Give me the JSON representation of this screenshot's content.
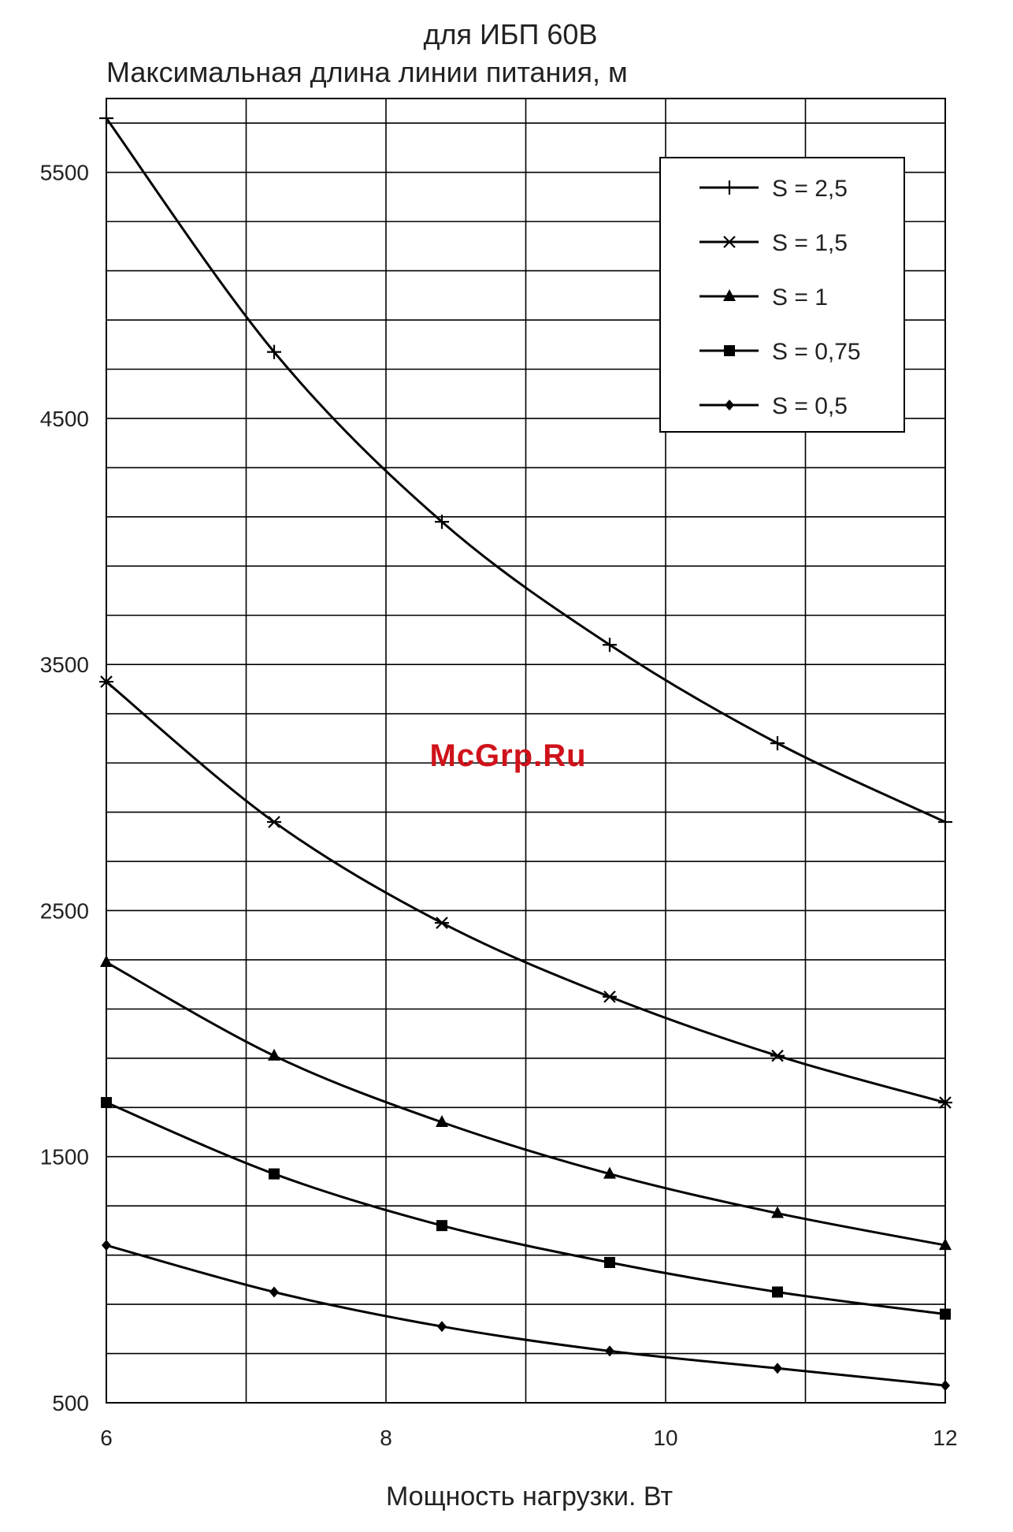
{
  "title": "для ИБП 60В",
  "ylabel": "Максимальная длина линии питания, м",
  "xlabel": "Мощность нагрузки. Вт",
  "watermark": "McGrp.Ru",
  "chart_data": {
    "type": "line",
    "title": "для ИБП 60В",
    "ylabel": "Максимальная длина линии питания, м",
    "xlabel": "Мощность нагрузки. Вт",
    "xlim": [
      6,
      12
    ],
    "ylim": [
      500,
      5800
    ],
    "x_ticks": [
      6,
      8,
      10,
      12
    ],
    "y_ticks": [
      500,
      1500,
      2500,
      3500,
      4500,
      5500
    ],
    "x_grid_step": 1,
    "y_grid_step": 200,
    "grid": true,
    "legend_position": "top-right",
    "x": [
      6,
      7.2,
      8.4,
      9.6,
      10.8,
      12
    ],
    "series": [
      {
        "name": "S = 2,5",
        "marker": "plus",
        "values": [
          5720,
          4770,
          4080,
          3580,
          3180,
          2860
        ]
      },
      {
        "name": "S = 1,5",
        "marker": "star",
        "values": [
          3430,
          2860,
          2450,
          2150,
          1910,
          1720
        ]
      },
      {
        "name": "S = 1",
        "marker": "triangle",
        "values": [
          2290,
          1910,
          1640,
          1430,
          1270,
          1140
        ]
      },
      {
        "name": "S = 0,75",
        "marker": "square",
        "values": [
          1720,
          1430,
          1220,
          1070,
          950,
          860
        ]
      },
      {
        "name": "S = 0,5",
        "marker": "diamond",
        "values": [
          1140,
          950,
          810,
          710,
          640,
          570
        ]
      }
    ]
  }
}
